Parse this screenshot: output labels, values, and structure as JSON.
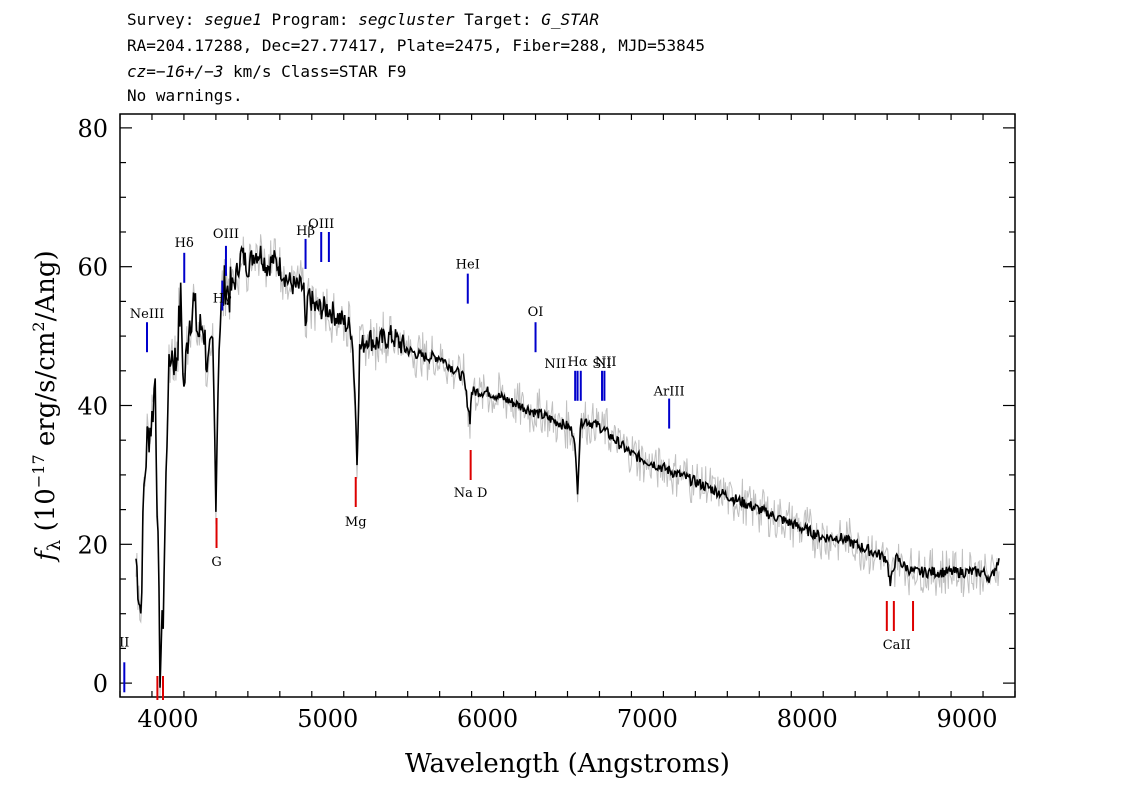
{
  "header": {
    "line1": {
      "survey_label": "Survey: ",
      "survey": "segue1",
      "program_label": " Program: ",
      "program": "segcluster",
      "target_label": " Target: ",
      "target": "G_STAR"
    },
    "line2": "RA=204.17288, Dec=27.77417, Plate=2475, Fiber=288, MJD=53845",
    "line3": {
      "cz_label": "cz",
      "cz_value": "=−16+/−3",
      "rest": " km/s Class=STAR F9"
    },
    "line4": "No warnings."
  },
  "chart_data": {
    "type": "line",
    "xlabel": "Wavelength (Angstroms)",
    "ylabel": "f_λ (10^-17 erg/s/cm^2/Ang)",
    "xlim": [
      3700,
      9300
    ],
    "ylim": [
      -2,
      82
    ],
    "x_ticks": [
      4000,
      5000,
      6000,
      7000,
      8000,
      9000
    ],
    "y_ticks": [
      0,
      20,
      40,
      60,
      80
    ],
    "grid": false,
    "series": [
      {
        "role": "flux",
        "color": "#000000",
        "x": [
          3800,
          3830,
          3850,
          3870,
          3900,
          3920,
          3950,
          3970,
          4000,
          4020,
          4050,
          4080,
          4100,
          4130,
          4160,
          4190,
          4220,
          4250,
          4280,
          4300,
          4320,
          4340,
          4360,
          4380,
          4420,
          4460,
          4500,
          4540,
          4580,
          4620,
          4660,
          4700,
          4750,
          4800,
          4850,
          4860,
          4880,
          4920,
          4960,
          5000,
          5050,
          5100,
          5150,
          5170,
          5183,
          5200,
          5250,
          5300,
          5400,
          5500,
          5600,
          5700,
          5800,
          5850,
          5890,
          5900,
          5950,
          6000,
          6100,
          6200,
          6300,
          6400,
          6500,
          6540,
          6563,
          6580,
          6600,
          6700,
          6800,
          6900,
          7000,
          7100,
          7200,
          7300,
          7400,
          7500,
          7600,
          7700,
          7800,
          7900,
          8000,
          8100,
          8200,
          8300,
          8400,
          8498,
          8520,
          8542,
          8560,
          8600,
          8662,
          8700,
          8800,
          8900,
          9000,
          9100,
          9150,
          9200
        ],
        "y": [
          18,
          10,
          28,
          35,
          38,
          44,
          2,
          10,
          42,
          48,
          46,
          55,
          42,
          52,
          55,
          50,
          52,
          45,
          48,
          28,
          50,
          55,
          58,
          56,
          58,
          62,
          60,
          62,
          62,
          60,
          61,
          60,
          58,
          57,
          57,
          50,
          56,
          54,
          54,
          54,
          53,
          52,
          51,
          42,
          32,
          48,
          50,
          49,
          50,
          48,
          47,
          47,
          45,
          44,
          38,
          42,
          42,
          42,
          41,
          40,
          39,
          38,
          37,
          36,
          28,
          37,
          38,
          37,
          35,
          33,
          32,
          31,
          30,
          29,
          28,
          27,
          26,
          25,
          24,
          23,
          22,
          21,
          21,
          20,
          19,
          18,
          14,
          17,
          18,
          17,
          16,
          16,
          16,
          16,
          16,
          16,
          15,
          18
        ]
      },
      {
        "role": "error envelope",
        "color": "#c0c0c0"
      }
    ],
    "lines": [
      {
        "label": "NeIII",
        "x": 3869,
        "kind": "emission"
      },
      {
        "label": "Hδ",
        "x": 4102,
        "kind": "emission"
      },
      {
        "label": "Hγ",
        "x": 4340,
        "kind": "emission"
      },
      {
        "label": "OIII",
        "x": 4363,
        "kind": "emission"
      },
      {
        "label": "Hβ",
        "x": 4861,
        "kind": "emission"
      },
      {
        "label": "OIII",
        "x": 4959,
        "kind": "emission"
      },
      {
        "label": "",
        "x": 5007,
        "kind": "emission"
      },
      {
        "label": "HeI",
        "x": 5876,
        "kind": "emission"
      },
      {
        "label": "OI",
        "x": 6300,
        "kind": "emission"
      },
      {
        "label": "NII",
        "x": 6548,
        "kind": "emission"
      },
      {
        "label": "Hα",
        "x": 6563,
        "kind": "emission"
      },
      {
        "label": "NII",
        "x": 6583,
        "kind": "emission"
      },
      {
        "label": "SII",
        "x": 6716,
        "kind": "emission"
      },
      {
        "label": "",
        "x": 6731,
        "kind": "emission"
      },
      {
        "label": "ArIII",
        "x": 7136,
        "kind": "emission"
      },
      {
        "label": "II",
        "x": 3727,
        "kind": "emission"
      },
      {
        "label": "",
        "x": 3934,
        "kind": "absorption"
      },
      {
        "label": "",
        "x": 3969,
        "kind": "absorption"
      },
      {
        "label": "G",
        "x": 4304,
        "kind": "absorption"
      },
      {
        "label": "Mg",
        "x": 5175,
        "kind": "absorption"
      },
      {
        "label": "Na  D",
        "x": 5894,
        "kind": "absorption"
      },
      {
        "label": "CaII",
        "x": 8498,
        "kind": "absorption"
      },
      {
        "label": "",
        "x": 8542,
        "kind": "absorption"
      },
      {
        "label": "",
        "x": 8662,
        "kind": "absorption"
      }
    ],
    "colors": {
      "emission": "#0000cc",
      "absorption": "#dd0000",
      "flux": "#000000",
      "error": "#c0c0c0"
    }
  }
}
